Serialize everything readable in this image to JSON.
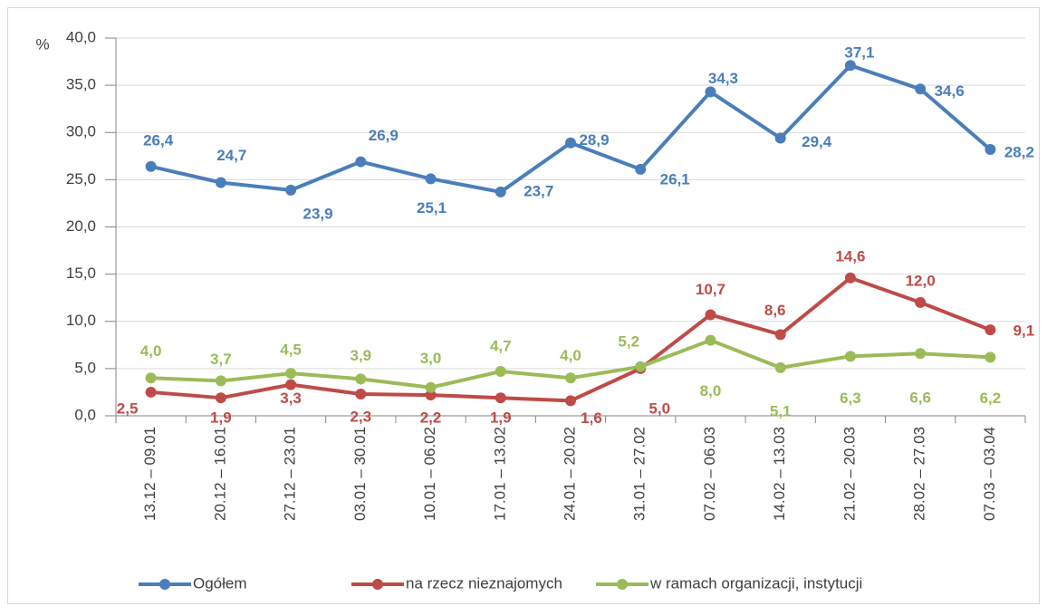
{
  "chart_data": {
    "type": "line",
    "y_label": "%",
    "categories": [
      "13.12 – 09.01",
      "20.12 – 16.01",
      "27.12 – 23.01",
      "03.01 – 30.01",
      "10.01 – 06.02",
      "17.01 – 13.02",
      "24.01 – 20.02",
      "31.01 – 27.02",
      "07.02 – 06.03",
      "14.02 – 13.03",
      "21.02 – 20.03",
      "28.02 – 27.03",
      "07.03 – 03.04"
    ],
    "series": [
      {
        "name": "Ogółem",
        "color": "#4a7ebb",
        "values": [
          26.4,
          24.7,
          23.9,
          26.9,
          25.1,
          23.7,
          28.9,
          26.1,
          34.3,
          29.4,
          37.1,
          34.6,
          28.2
        ],
        "value_labels": [
          "26,4",
          "24,7",
          "23,9",
          "26,9",
          "25,1",
          "23,7",
          "28,9",
          "26,1",
          "34,3",
          "29,4",
          "37,1",
          "34,6",
          "28,2"
        ]
      },
      {
        "name": "na rzecz nieznajomych",
        "color": "#be4b48",
        "values": [
          2.5,
          1.9,
          3.3,
          2.3,
          2.2,
          1.9,
          1.6,
          5.0,
          10.7,
          8.6,
          14.6,
          12.0,
          9.1
        ],
        "value_labels": [
          "2,5",
          "1,9",
          "3,3",
          "2,3",
          "2,2",
          "1,9",
          "1,6",
          "5,0",
          "10,7",
          "8,6",
          "14,6",
          "12,0",
          "9,1"
        ]
      },
      {
        "name": "w ramach organizacji, instytucji",
        "color": "#9bbb59",
        "values": [
          4.0,
          3.7,
          4.5,
          3.9,
          3.0,
          4.7,
          4.0,
          5.2,
          8.0,
          5.1,
          6.3,
          6.6,
          6.2
        ],
        "value_labels": [
          "4,0",
          "3,7",
          "4,5",
          "3,9",
          "3,0",
          "4,7",
          "4,0",
          "5,2",
          "8,0",
          "5,1",
          "6,3",
          "6,6",
          "6,2"
        ]
      }
    ],
    "ylim": [
      0,
      40
    ],
    "yticks": [
      {
        "value": 0,
        "label": "0,0"
      },
      {
        "value": 5,
        "label": "5,0"
      },
      {
        "value": 10,
        "label": "10,0"
      },
      {
        "value": 15,
        "label": "15,0"
      },
      {
        "value": 20,
        "label": "20,0"
      },
      {
        "value": 25,
        "label": "25,0"
      },
      {
        "value": 30,
        "label": "30,0"
      },
      {
        "value": 35,
        "label": "35,0"
      },
      {
        "value": 40,
        "label": "40,0"
      }
    ],
    "grid": true,
    "legend": "bottom"
  }
}
